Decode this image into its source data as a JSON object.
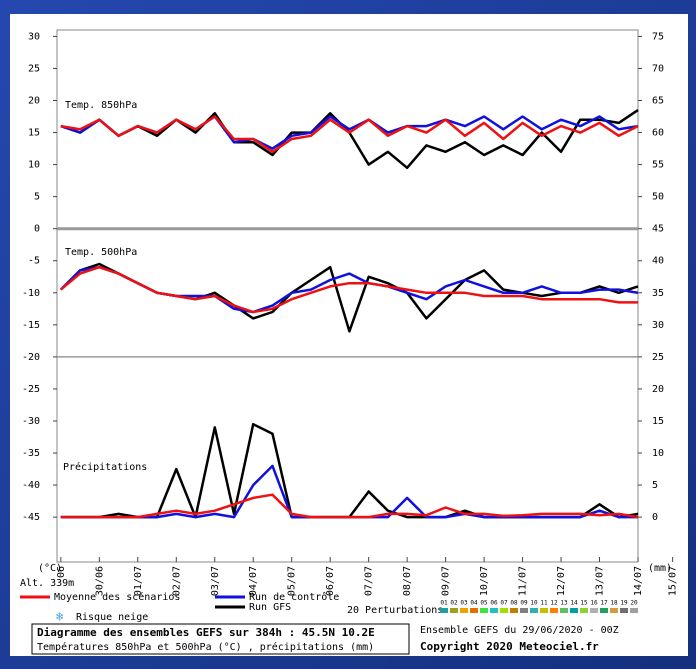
{
  "chart_data": {
    "type": "line",
    "panel_labels": [
      "Temp. 850hPa",
      "Temp. 500hPa",
      "Précipitations"
    ],
    "unit_left": "(°C)",
    "unit_right": "(mm)",
    "altitude": "Alt. 339m",
    "x": [
      0,
      0.5,
      1,
      1.5,
      2,
      2.5,
      3,
      3.5,
      4,
      4.5,
      5,
      5.5,
      6,
      6.5,
      7,
      7.5,
      8,
      8.5,
      9,
      9.5,
      10,
      10.5,
      11,
      11.5,
      12,
      12.5,
      13,
      13.5,
      14,
      14.5,
      15
    ],
    "xlim": [
      -0.1,
      15
    ],
    "xticks": [
      {
        "value": 0,
        "label": "06"
      },
      {
        "value": 1,
        "label": "30/06"
      },
      {
        "value": 2,
        "label": "01/07"
      },
      {
        "value": 3,
        "label": "02/07"
      },
      {
        "value": 4,
        "label": "03/07"
      },
      {
        "value": 5,
        "label": "04/07"
      },
      {
        "value": 6,
        "label": "05/07"
      },
      {
        "value": 7,
        "label": "06/07"
      },
      {
        "value": 8,
        "label": "07/07"
      },
      {
        "value": 9,
        "label": "08/07"
      },
      {
        "value": 10,
        "label": "09/07"
      },
      {
        "value": 11,
        "label": "10/07"
      },
      {
        "value": 12,
        "label": "11/07"
      },
      {
        "value": 13,
        "label": "12/07"
      },
      {
        "value": 14,
        "label": "13/07"
      },
      {
        "value": 15,
        "label": "14/07"
      },
      {
        "value": 15.9,
        "label": "15/07"
      }
    ],
    "ylim": [
      -52,
      31
    ],
    "yticks": [
      30,
      25,
      20,
      15,
      10,
      5,
      0,
      -5,
      -10,
      -15,
      -20,
      -25,
      -30,
      -35,
      -40,
      -45
    ],
    "y2lim": [
      -7,
      76
    ],
    "y2ticks": [
      75,
      70,
      65,
      60,
      55,
      50,
      45,
      40,
      35,
      30,
      25,
      20,
      15,
      10,
      5,
      0
    ],
    "separators": [
      0,
      -20
    ],
    "series": [
      {
        "name": "Moyenne des scénarios",
        "color": "#ee1111",
        "t850": [
          16,
          15.5,
          17,
          14.5,
          16,
          15,
          17,
          15.5,
          17.5,
          14,
          14,
          12,
          14,
          14.5,
          17,
          15,
          17,
          14.5,
          16,
          15,
          17,
          14.5,
          16.5,
          14,
          16.5,
          14.5,
          16,
          15,
          16.5,
          14.5,
          16
        ],
        "t500": [
          -9.5,
          -7,
          -6,
          -7,
          -8.5,
          -10,
          -10.5,
          -11,
          -10.5,
          -12,
          -13,
          -12.5,
          -11,
          -10,
          -9,
          -8.5,
          -8.5,
          -9,
          -9.5,
          -10,
          -10,
          -10,
          -10.5,
          -10.5,
          -10.5,
          -11,
          -11,
          -11,
          -11,
          -11.5,
          -11.5
        ],
        "precip": [
          0,
          0,
          0,
          0,
          0,
          0.5,
          1,
          0.5,
          1,
          2,
          3,
          3.5,
          0.5,
          0,
          0,
          0,
          0,
          0.5,
          0.5,
          0.3,
          1.5,
          0.5,
          0.5,
          0.2,
          0.3,
          0.5,
          0.5,
          0.5,
          0.3,
          0.5,
          0
        ]
      },
      {
        "name": "Run de contrôle",
        "color": "#1111dd",
        "t850": [
          16,
          15,
          17,
          14.5,
          16,
          15,
          17,
          15.5,
          17.5,
          13.5,
          14,
          12.5,
          14.5,
          15,
          17.5,
          15.5,
          17,
          15,
          16,
          16,
          17,
          16,
          17.5,
          15.5,
          17.5,
          15.5,
          17,
          16,
          17.5,
          15.5,
          16
        ],
        "t500": [
          -9.5,
          -6.5,
          -6,
          -7,
          -8.5,
          -10,
          -10.5,
          -10.5,
          -10.5,
          -12.5,
          -13,
          -12,
          -10,
          -9.5,
          -8,
          -7,
          -8.5,
          -9,
          -10,
          -11,
          -9,
          -8,
          -9,
          -10,
          -10,
          -9,
          -10,
          -10,
          -9.5,
          -9.5,
          -10
        ],
        "precip": [
          0,
          0,
          0,
          0,
          0,
          0,
          0.5,
          0,
          0.5,
          0,
          5,
          8,
          0,
          0,
          0,
          0,
          0,
          0,
          3,
          0,
          0,
          0.5,
          0,
          0,
          0,
          0,
          0,
          0,
          1,
          0,
          0
        ]
      },
      {
        "name": "Run GFS",
        "color": "#000000",
        "t850": [
          16,
          15,
          17,
          14.5,
          16,
          14.5,
          17,
          15,
          18,
          13.5,
          13.5,
          11.5,
          15,
          15,
          18,
          15,
          10,
          12,
          9.5,
          13,
          12,
          13.5,
          11.5,
          13,
          11.5,
          15,
          12,
          17,
          17,
          16.5,
          18.5
        ],
        "t500": [
          -9.5,
          -6.5,
          -5.5,
          -7,
          -8.5,
          -10,
          -10.5,
          -11,
          -10,
          -12,
          -14,
          -13,
          -10,
          -8,
          -6,
          -16,
          -7.5,
          -8.5,
          -10,
          -14,
          -11,
          -8,
          -6.5,
          -9.5,
          -10,
          -10.5,
          -10,
          -10,
          -9,
          -10,
          -9
        ],
        "precip": [
          0,
          0,
          0,
          0.5,
          0,
          0,
          7.5,
          0,
          14,
          0.5,
          14.5,
          13,
          0,
          0,
          0,
          0,
          4,
          1,
          0,
          0,
          0,
          1,
          0,
          0,
          0,
          0,
          0,
          0,
          2,
          0,
          0.5
        ]
      }
    ],
    "snow_label": "Risque neige",
    "perturbations": {
      "label": "20 Perturbations",
      "names": [
        "01",
        "02",
        "03",
        "04",
        "05",
        "06",
        "07",
        "08",
        "09",
        "10",
        "11",
        "12",
        "13",
        "14",
        "15",
        "16",
        "17",
        "18",
        "19",
        "20"
      ],
      "colors": [
        "#1f9f9f",
        "#9f9f1f",
        "#f0a000",
        "#e07000",
        "#40e040",
        "#20c0c0",
        "#a0e000",
        "#c08000",
        "#808080",
        "#30b0b0",
        "#c0c000",
        "#ff8000",
        "#60c060",
        "#00a0a0",
        "#90d030",
        "#b0b0b0",
        "#20a060",
        "#d0a040",
        "#707070",
        "#a0a0a0"
      ]
    },
    "footer": {
      "title": "Diagramme des ensembles GEFS sur 384h : 45.5N 10.2E",
      "subtitle": "Températures 850hPa et 500hPa (°C) , précipitations (mm)",
      "run": "Ensemble GEFS du 29/06/2020 - 00Z",
      "copyright": "Copyright 2020 Meteociel.fr"
    }
  }
}
